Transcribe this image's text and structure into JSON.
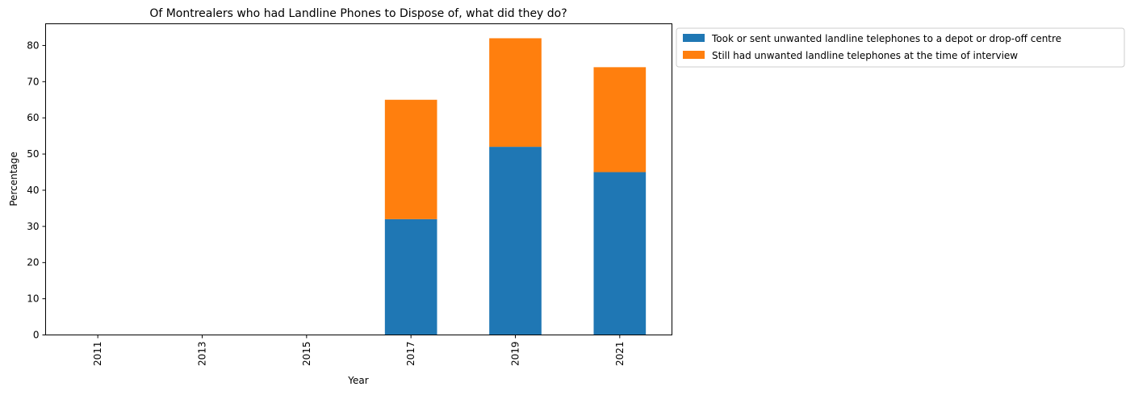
{
  "chart_data": {
    "type": "bar",
    "stacked": true,
    "title": "Of Montrealers who had Landline Phones to Dispose of, what did they do?",
    "xlabel": "Year",
    "ylabel": "Percentage",
    "categories": [
      "2011",
      "2013",
      "2015",
      "2017",
      "2019",
      "2021"
    ],
    "ylim": [
      0,
      86
    ],
    "yticks": [
      0,
      10,
      20,
      30,
      40,
      50,
      60,
      70,
      80
    ],
    "series": [
      {
        "name": "Took or sent unwanted landline telephones to a depot or drop-off centre",
        "color": "#1f77b4",
        "values": [
          0,
          0,
          0,
          32,
          52,
          45
        ]
      },
      {
        "name": "Still had unwanted landline telephones at the time of interview",
        "color": "#ff7f0e",
        "values": [
          0,
          0,
          0,
          33,
          30,
          29
        ]
      }
    ],
    "grid": false,
    "legend_position": "outside-top-right",
    "xtick_rotation": 90
  }
}
